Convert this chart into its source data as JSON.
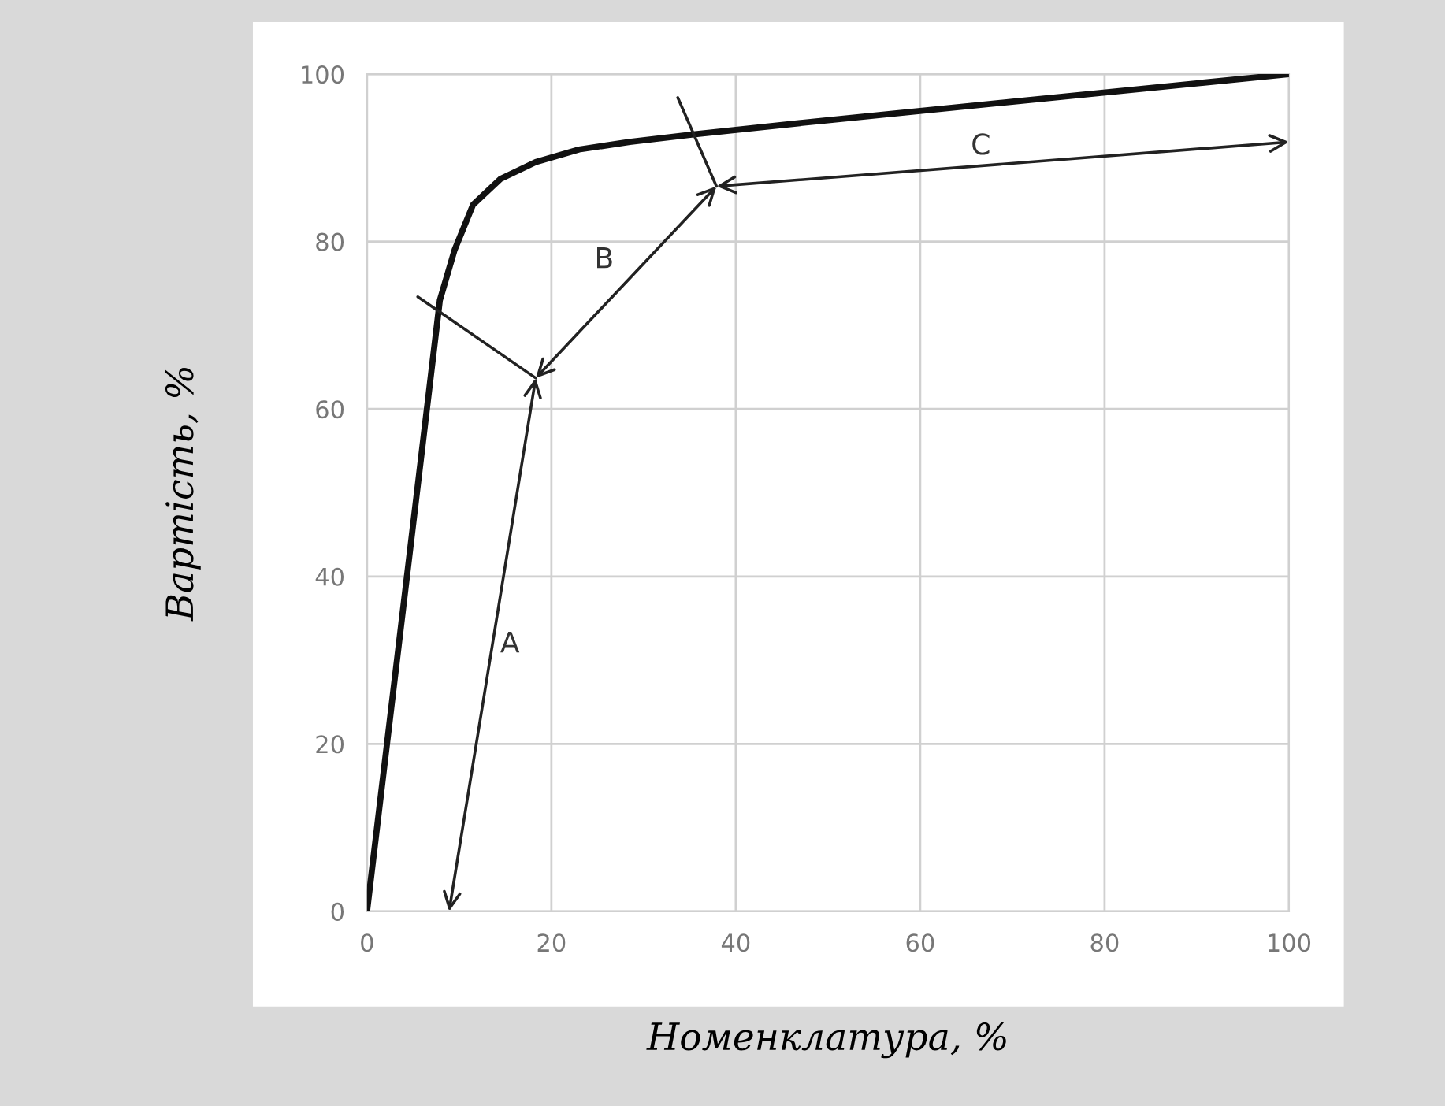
{
  "chart_data": {
    "type": "line",
    "xlabel": "Номенклатура, %",
    "ylabel": "Вартість, %",
    "series": [
      {
        "color": "#111111",
        "x": [
          0,
          7.9,
          9.5,
          11.5,
          14.5,
          18.3,
          23,
          28.5,
          35.4,
          50,
          70,
          100
        ],
        "values": [
          0,
          73,
          79,
          84.4,
          87.5,
          89.5,
          91,
          91.9,
          92.8,
          94.5,
          96.7,
          100
        ]
      },
      {
        "type": "step",
        "color": "#222222",
        "x": [
          8.9,
          18.3,
          37.9,
          100
        ],
        "values": [
          0,
          63.7,
          86.6,
          91.9
        ]
      },
      {
        "color": "#222222",
        "x": [
          5.5,
          18.3
        ],
        "values": [
          73.4,
          63.7
        ]
      },
      {
        "color": "#222222",
        "x": [
          33.7,
          37.9
        ],
        "values": [
          97.2,
          86.6
        ]
      }
    ],
    "annotations": [
      "A",
      "B",
      "C"
    ],
    "xlim": [
      0,
      100
    ],
    "ylim": [
      0,
      100
    ],
    "xticks": [
      0,
      20,
      40,
      60,
      80,
      100
    ],
    "yticks": [
      0,
      20,
      40,
      60,
      80,
      100
    ],
    "grid": true,
    "legend": false
  }
}
